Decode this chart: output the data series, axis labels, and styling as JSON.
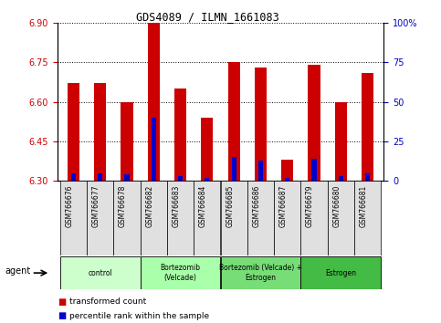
{
  "title": "GDS4089 / ILMN_1661083",
  "samples": [
    "GSM766676",
    "GSM766677",
    "GSM766678",
    "GSM766682",
    "GSM766683",
    "GSM766684",
    "GSM766685",
    "GSM766686",
    "GSM766687",
    "GSM766679",
    "GSM766680",
    "GSM766681"
  ],
  "red_values": [
    6.67,
    6.67,
    6.6,
    6.9,
    6.65,
    6.54,
    6.75,
    6.73,
    6.38,
    6.74,
    6.6,
    6.71
  ],
  "blue_percentiles": [
    5,
    5,
    4,
    40,
    3,
    2,
    15,
    13,
    2,
    14,
    3,
    5
  ],
  "baseline": 6.3,
  "ylim_left": [
    6.3,
    6.9
  ],
  "ylim_right": [
    0,
    100
  ],
  "yticks_left": [
    6.3,
    6.45,
    6.6,
    6.75,
    6.9
  ],
  "yticks_right": [
    0,
    25,
    50,
    75,
    100
  ],
  "ytick_labels_right": [
    "0",
    "25",
    "50",
    "75",
    "100%"
  ],
  "groups": [
    {
      "label": "control",
      "start": 0,
      "end": 3,
      "color": "#ccffcc"
    },
    {
      "label": "Bortezomib\n(Velcade)",
      "start": 3,
      "end": 6,
      "color": "#aaffaa"
    },
    {
      "label": "Bortezomib (Velcade) +\nEstrogen",
      "start": 6,
      "end": 9,
      "color": "#77dd77"
    },
    {
      "label": "Estrogen",
      "start": 9,
      "end": 12,
      "color": "#44bb44"
    }
  ],
  "bar_color": "#cc0000",
  "blue_color": "#0000cc",
  "bar_width": 0.45,
  "blue_bar_width": 0.18,
  "grid_color": "#000000",
  "background_color": "#ffffff",
  "tick_label_color_left": "#cc0000",
  "tick_label_color_right": "#0000cc",
  "legend_items": [
    "transformed count",
    "percentile rank within the sample"
  ],
  "agent_label": "agent"
}
